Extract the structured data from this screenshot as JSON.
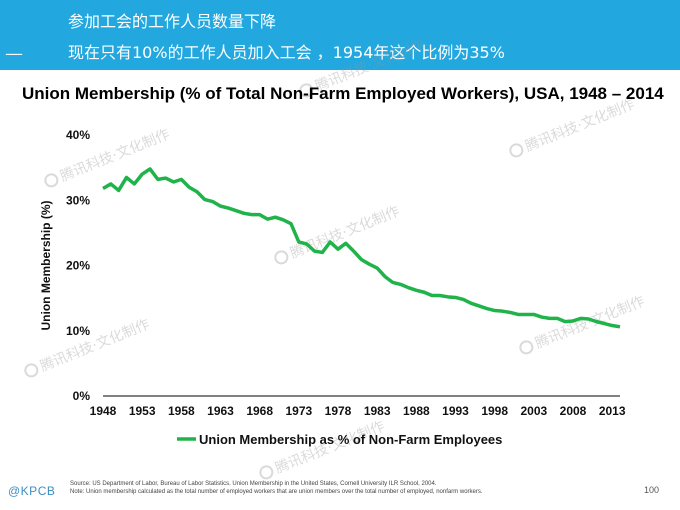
{
  "header": {
    "line1": "参加工会的工作人员数量下降",
    "dash": "__",
    "line2": "现在只有10%的工作人员加入工会 ，1954年这个比例为35%",
    "background": "#22a8df"
  },
  "watermark": "腾讯科技·文化制作",
  "chart_data": {
    "type": "line",
    "title": "Union Membership (% of Total Non-Farm Employed Workers), USA, 1948 – 2014",
    "ylabel": "Union Membership (%)",
    "xlabel": "",
    "ylim": [
      0,
      40
    ],
    "xlim": [
      1948,
      2014
    ],
    "y_ticks": [
      0,
      10,
      20,
      30,
      40
    ],
    "y_tick_labels": [
      "0%",
      "10%",
      "20%",
      "30%",
      "40%"
    ],
    "x_ticks": [
      1948,
      1953,
      1958,
      1963,
      1968,
      1973,
      1978,
      1983,
      1988,
      1993,
      1998,
      2003,
      2008,
      2013
    ],
    "grid": false,
    "legend_position": "bottom",
    "series": [
      {
        "name": "Union Membership as % of Non-Farm Employees",
        "color": "#1fb34a",
        "x": [
          1948,
          1949,
          1950,
          1951,
          1952,
          1953,
          1954,
          1955,
          1956,
          1957,
          1958,
          1959,
          1960,
          1961,
          1962,
          1963,
          1964,
          1965,
          1966,
          1967,
          1968,
          1969,
          1970,
          1971,
          1972,
          1973,
          1974,
          1975,
          1976,
          1977,
          1978,
          1979,
          1980,
          1981,
          1982,
          1983,
          1984,
          1985,
          1986,
          1987,
          1988,
          1989,
          1990,
          1991,
          1992,
          1993,
          1994,
          1995,
          1996,
          1997,
          1998,
          1999,
          2000,
          2001,
          2002,
          2003,
          2004,
          2005,
          2006,
          2007,
          2008,
          2009,
          2010,
          2011,
          2012,
          2013,
          2014
        ],
        "values": [
          31.8,
          32.5,
          31.5,
          33.5,
          32.5,
          34.0,
          34.8,
          33.2,
          33.4,
          32.8,
          33.2,
          32.0,
          31.3,
          30.1,
          29.8,
          29.1,
          28.8,
          28.4,
          28.0,
          27.8,
          27.8,
          27.1,
          27.4,
          27.0,
          26.4,
          23.6,
          23.3,
          22.2,
          22.0,
          23.6,
          22.5,
          23.4,
          22.2,
          20.9,
          20.2,
          19.6,
          18.3,
          17.4,
          17.1,
          16.6,
          16.2,
          15.9,
          15.4,
          15.4,
          15.2,
          15.1,
          14.8,
          14.2,
          13.8,
          13.4,
          13.1,
          13.0,
          12.8,
          12.5,
          12.5,
          12.5,
          12.1,
          11.9,
          11.9,
          11.4,
          11.5,
          11.9,
          11.8,
          11.4,
          11.1,
          10.8,
          10.6
        ]
      }
    ]
  },
  "footer": {
    "logo": "@KPCB",
    "source_line1": "Source: US Department of Labor, Bureau of Labor Statistics. Union Membership in the United States, Cornell University ILR School, 2004.",
    "source_line2": "Note: Union membership calculated as the total number of employed workers that are union members over the total number of employed, nonfarm workers.",
    "page_number": "100"
  }
}
